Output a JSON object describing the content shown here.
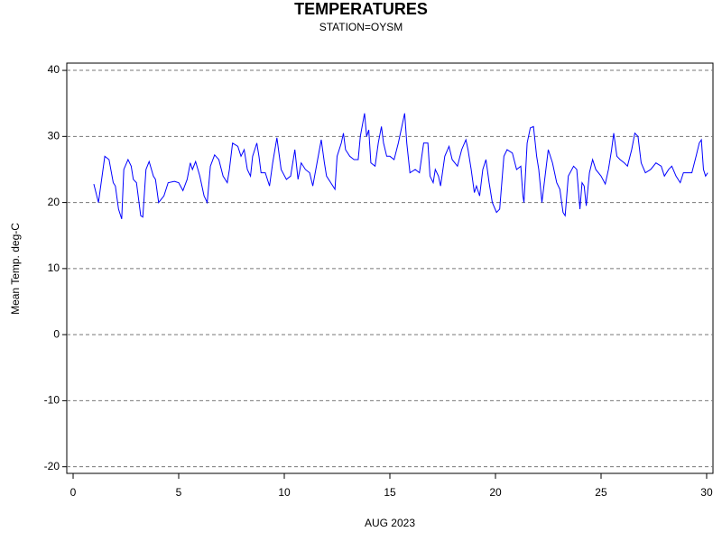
{
  "chart_data": {
    "type": "line",
    "title": "TEMPERATURES",
    "subtitle": "STATION=OYSM",
    "x_label": "AUG 2023",
    "y_label": "Mean Temp. deg-C",
    "xlim": [
      -0.3,
      30.3
    ],
    "ylim": [
      -21,
      41.1
    ],
    "xticks": [
      0,
      5,
      10,
      15,
      20,
      25,
      30
    ],
    "yticks": [
      -20,
      -10,
      0,
      10,
      20,
      30,
      40
    ],
    "grid": true,
    "x": [
      0.98,
      1.2,
      1.5,
      1.7,
      1.9,
      2.0,
      2.15,
      2.3,
      2.4,
      2.6,
      2.75,
      2.85,
      3.0,
      3.2,
      3.3,
      3.45,
      3.6,
      3.8,
      3.9,
      4.05,
      4.3,
      4.5,
      4.8,
      5.0,
      5.2,
      5.4,
      5.55,
      5.65,
      5.8,
      6.0,
      6.2,
      6.35,
      6.5,
      6.7,
      6.9,
      7.1,
      7.3,
      7.4,
      7.55,
      7.8,
      7.95,
      8.1,
      8.25,
      8.4,
      8.5,
      8.7,
      8.8,
      8.9,
      9.1,
      9.3,
      9.45,
      9.65,
      9.85,
      10.1,
      10.3,
      10.5,
      10.65,
      10.8,
      11.0,
      11.2,
      11.35,
      11.55,
      11.75,
      11.9,
      12.0,
      12.2,
      12.4,
      12.5,
      12.7,
      12.8,
      12.9,
      13.1,
      13.3,
      13.5,
      13.6,
      13.8,
      13.9,
      14.0,
      14.1,
      14.3,
      14.45,
      14.6,
      14.7,
      14.85,
      15.0,
      15.2,
      15.4,
      15.7,
      15.8,
      15.95,
      16.2,
      16.4,
      16.6,
      16.8,
      16.9,
      17.05,
      17.15,
      17.3,
      17.4,
      17.6,
      17.8,
      17.95,
      18.2,
      18.4,
      18.6,
      18.7,
      18.85,
      19.0,
      19.1,
      19.25,
      19.4,
      19.55,
      19.7,
      19.85,
      20.05,
      20.2,
      20.4,
      20.55,
      20.8,
      21.0,
      21.2,
      21.3,
      21.35,
      21.5,
      21.65,
      21.8,
      21.95,
      22.05,
      22.2,
      22.35,
      22.5,
      22.7,
      22.9,
      23.05,
      23.2,
      23.3,
      23.45,
      23.7,
      23.85,
      24.0,
      24.1,
      24.2,
      24.3,
      24.45,
      24.6,
      24.75,
      25.0,
      25.2,
      25.35,
      25.5,
      25.6,
      25.75,
      25.9,
      26.1,
      26.25,
      26.45,
      26.6,
      26.75,
      26.9,
      27.1,
      27.35,
      27.6,
      27.85,
      28.0,
      28.2,
      28.35,
      28.55,
      28.75,
      28.9,
      29.3,
      29.5,
      29.65,
      29.75,
      29.85,
      29.95,
      30.05
    ],
    "series": [
      {
        "name": "Mean Temp.",
        "color": "#0000ff",
        "values": [
          22.8,
          20,
          27,
          26.5,
          23,
          22.5,
          19,
          17.5,
          25,
          26.5,
          25.5,
          23.5,
          23,
          18,
          17.8,
          25,
          26.2,
          24,
          23.5,
          20,
          21,
          23,
          23.2,
          23,
          21.8,
          23.5,
          26,
          25,
          26.2,
          24,
          21,
          20,
          25.5,
          27.2,
          26.5,
          24,
          23,
          25,
          29,
          28.5,
          27,
          28,
          25,
          24,
          27,
          29,
          27,
          24.5,
          24.5,
          22.5,
          26,
          29.8,
          25,
          23.5,
          24,
          28,
          23.5,
          26,
          25,
          24.5,
          22.5,
          26,
          29.5,
          26,
          24,
          23,
          22,
          27,
          29,
          30.5,
          28,
          27,
          26.5,
          26.5,
          30,
          33.5,
          30,
          31,
          26,
          25.5,
          29,
          31.5,
          29,
          27,
          27,
          26.5,
          29,
          33.5,
          29,
          24.5,
          25,
          24.5,
          29,
          29,
          24,
          23,
          25,
          24,
          22.5,
          27,
          28.5,
          26.5,
          25.5,
          28,
          29.5,
          28,
          25,
          21.5,
          22.5,
          21,
          25,
          26.5,
          23,
          20,
          18.5,
          19,
          27,
          28,
          27.5,
          25,
          25.5,
          21,
          20,
          29,
          31.3,
          31.5,
          27,
          25,
          20,
          24,
          28,
          26,
          23,
          22,
          18.5,
          18,
          24,
          25.5,
          25,
          19,
          23,
          22.5,
          19.5,
          24.5,
          26.5,
          25,
          24,
          22.8,
          25,
          28,
          30.5,
          27,
          26.5,
          26,
          25.5,
          28,
          30.5,
          30,
          26,
          24.5,
          25,
          26,
          25.5,
          24,
          25,
          25.5,
          24,
          23,
          24.5,
          24.5,
          27,
          29,
          29.5,
          25,
          24,
          24.5
        ]
      }
    ]
  }
}
